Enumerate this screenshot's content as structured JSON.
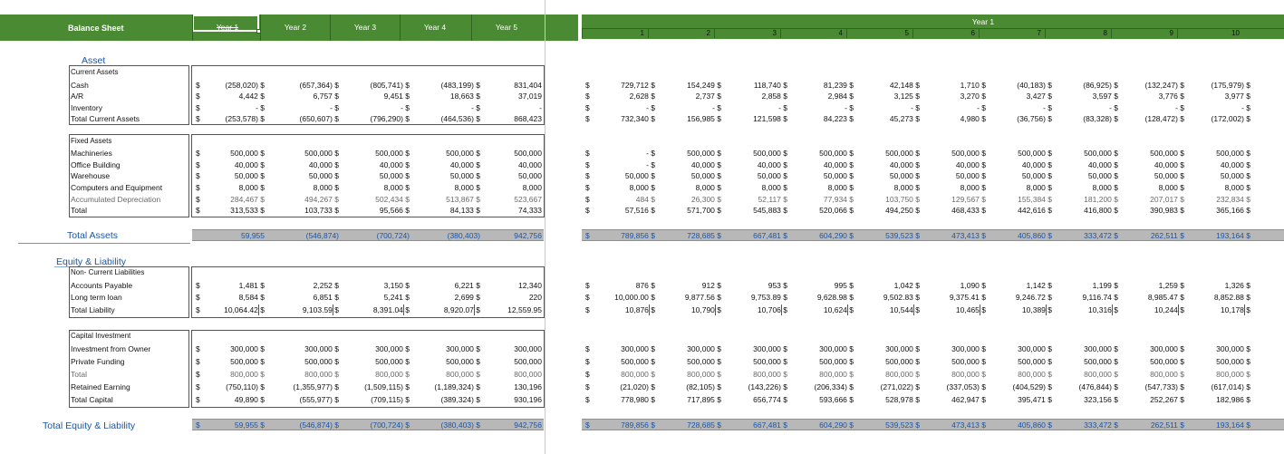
{
  "colors": {
    "header_green": "#4a8a33",
    "total_blue": "#1a56a8",
    "total_bar": "#b8b8b8"
  },
  "header": {
    "title": "Balance Sheet",
    "years": [
      "Year 1",
      "Year 2",
      "Year 3",
      "Year 4",
      "Year 5"
    ],
    "right_title": "Year 1",
    "months": [
      "1",
      "2",
      "3",
      "4",
      "5",
      "6",
      "7",
      "8",
      "9",
      "10"
    ]
  },
  "dollar_sign": "$",
  "sections": {
    "asset": "Asset",
    "current_assets": "Current Assets",
    "fixed_assets": "Fixed Assets",
    "total_assets": "Total Assets",
    "equity_liability": "Equity & Liability",
    "non_current": "Non- Current Liabilities",
    "capital_investment": "Capital Investment",
    "total_equity": "Total Equity & Liability"
  },
  "rows": [
    {
      "label": "Cash",
      "years": [
        "(258,020) $",
        "(657,364) $",
        "(805,741) $",
        "(483,199) $",
        "831,404"
      ],
      "months": [
        "729,712 $",
        "154,249 $",
        "118,740 $",
        "81,239 $",
        "42,148 $",
        "1,710 $",
        "(40,183) $",
        "(86,925) $",
        "(132,247) $",
        "(175,979) $"
      ]
    },
    {
      "label": "A/R",
      "years": [
        "4,442 $",
        "6,757 $",
        "9,451 $",
        "18,663 $",
        "37,019"
      ],
      "months": [
        "2,628 $",
        "2,737 $",
        "2,858 $",
        "2,984 $",
        "3,125 $",
        "3,270 $",
        "3,427 $",
        "3,597 $",
        "3,776 $",
        "3,977 $"
      ]
    },
    {
      "label": "Inventory",
      "years": [
        "- $",
        "- $",
        "- $",
        "- $",
        "-"
      ],
      "months": [
        "- $",
        "- $",
        "- $",
        "- $",
        "- $",
        "- $",
        "- $",
        "- $",
        "- $",
        "- $"
      ]
    },
    {
      "label": "Total Current Assets",
      "years": [
        "(253,578) $",
        "(650,607) $",
        "(796,290) $",
        "(464,536) $",
        "868,423"
      ],
      "months": [
        "732,340 $",
        "156,985 $",
        "121,598 $",
        "84,223 $",
        "45,273 $",
        "4,980 $",
        "(36,756) $",
        "(83,328) $",
        "(128,472) $",
        "(172,002) $"
      ]
    },
    {
      "label": "Machineries",
      "years": [
        "500,000 $",
        "500,000 $",
        "500,000 $",
        "500,000 $",
        "500,000"
      ],
      "months": [
        "- $",
        "500,000 $",
        "500,000 $",
        "500,000 $",
        "500,000 $",
        "500,000 $",
        "500,000 $",
        "500,000 $",
        "500,000 $",
        "500,000 $"
      ]
    },
    {
      "label": "Office Building",
      "years": [
        "40,000 $",
        "40,000 $",
        "40,000 $",
        "40,000 $",
        "40,000"
      ],
      "months": [
        "- $",
        "40,000 $",
        "40,000 $",
        "40,000 $",
        "40,000 $",
        "40,000 $",
        "40,000 $",
        "40,000 $",
        "40,000 $",
        "40,000 $"
      ]
    },
    {
      "label": "Warehouse",
      "years": [
        "50,000 $",
        "50,000 $",
        "50,000 $",
        "50,000 $",
        "50,000"
      ],
      "months": [
        "50,000 $",
        "50,000 $",
        "50,000 $",
        "50,000 $",
        "50,000 $",
        "50,000 $",
        "50,000 $",
        "50,000 $",
        "50,000 $",
        "50,000 $"
      ]
    },
    {
      "label": "Computers and Equipment",
      "years": [
        "8,000 $",
        "8,000 $",
        "8,000 $",
        "8,000 $",
        "8,000"
      ],
      "months": [
        "8,000 $",
        "8,000 $",
        "8,000 $",
        "8,000 $",
        "8,000 $",
        "8,000 $",
        "8,000 $",
        "8,000 $",
        "8,000 $",
        "8,000 $"
      ]
    },
    {
      "label": "Accumulated Depreciation",
      "years": [
        "284,467 $",
        "494,267 $",
        "502,434 $",
        "513,867 $",
        "523,667"
      ],
      "months": [
        "484 $",
        "26,300 $",
        "52,117 $",
        "77,934 $",
        "103,750 $",
        "129,567 $",
        "155,384 $",
        "181,200 $",
        "207,017 $",
        "232,834 $"
      ]
    },
    {
      "label": "Total",
      "years": [
        "313,533 $",
        "103,733 $",
        "95,566 $",
        "84,133 $",
        "74,333"
      ],
      "months": [
        "57,516 $",
        "571,700 $",
        "545,883 $",
        "520,066 $",
        "494,250 $",
        "468,433 $",
        "442,616 $",
        "416,800 $",
        "390,983 $",
        "365,166 $"
      ]
    },
    {
      "label": "Accounts Payable",
      "years": [
        "1,481 $",
        "2,252 $",
        "3,150 $",
        "6,221 $",
        "12,340"
      ],
      "months": [
        "876 $",
        "912 $",
        "953 $",
        "995 $",
        "1,042 $",
        "1,090 $",
        "1,142 $",
        "1,199 $",
        "1,259 $",
        "1,326 $"
      ]
    },
    {
      "label": "Long term loan",
      "years": [
        "8,584 $",
        "6,851 $",
        "5,241 $",
        "2,699 $",
        "220"
      ],
      "months": [
        "10,000.00 $",
        "9,877.56 $",
        "9,753.89 $",
        "9,628.98 $",
        "9,502.83 $",
        "9,375.41 $",
        "9,246.72 $",
        "9,116.74 $",
        "8,985.47 $",
        "8,852.88 $"
      ]
    },
    {
      "label": "Total Liability",
      "years": [
        "10,064.42 $",
        "9,103.59 $",
        "8,391.04 $",
        "8,920.07 $",
        "12,559.95"
      ],
      "months": [
        "10,876 $",
        "10,790 $",
        "10,706 $",
        "10,624 $",
        "10,544 $",
        "10,465 $",
        "10,389 $",
        "10,316 $",
        "10,244 $",
        "10,178 $"
      ]
    },
    {
      "label": "Investment from Owner",
      "years": [
        "300,000 $",
        "300,000 $",
        "300,000 $",
        "300,000 $",
        "300,000"
      ],
      "months": [
        "300,000 $",
        "300,000 $",
        "300,000 $",
        "300,000 $",
        "300,000 $",
        "300,000 $",
        "300,000 $",
        "300,000 $",
        "300,000 $",
        "300,000 $"
      ]
    },
    {
      "label": "Private Funding",
      "years": [
        "500,000 $",
        "500,000 $",
        "500,000 $",
        "500,000 $",
        "500,000"
      ],
      "months": [
        "500,000 $",
        "500,000 $",
        "500,000 $",
        "500,000 $",
        "500,000 $",
        "500,000 $",
        "500,000 $",
        "500,000 $",
        "500,000 $",
        "500,000 $"
      ]
    },
    {
      "label": "Total",
      "years": [
        "800,000 $",
        "800,000 $",
        "800,000 $",
        "800,000 $",
        "800,000"
      ],
      "months": [
        "800,000 $",
        "800,000 $",
        "800,000 $",
        "800,000 $",
        "800,000 $",
        "800,000 $",
        "800,000 $",
        "800,000 $",
        "800,000 $",
        "800,000 $"
      ]
    },
    {
      "label": "Retained Earning",
      "years": [
        "(750,110) $",
        "(1,355,977) $",
        "(1,509,115) $",
        "(1,189,324) $",
        "130,196"
      ],
      "months": [
        "(21,020) $",
        "(82,105) $",
        "(143,226) $",
        "(206,334) $",
        "(271,022) $",
        "(337,053) $",
        "(404,529) $",
        "(476,844) $",
        "(547,733) $",
        "(617,014) $"
      ]
    },
    {
      "label": "Total Capital",
      "years": [
        "49,890 $",
        "(555,977) $",
        "(709,115) $",
        "(389,324) $",
        "930,196"
      ],
      "months": [
        "778,980 $",
        "717,895 $",
        "656,774 $",
        "593,666 $",
        "528,978 $",
        "462,947 $",
        "395,471 $",
        "323,156 $",
        "252,267 $",
        "182,986 $"
      ]
    }
  ],
  "total_assets": {
    "years": [
      "59,955",
      "(546,874)",
      "(700,724)",
      "(380,403)",
      "942,756"
    ],
    "months": [
      "789,856 $",
      "728,685 $",
      "667,481 $",
      "604,290 $",
      "539,523 $",
      "473,413 $",
      "405,860 $",
      "333,472 $",
      "262,511 $",
      "193,164 $"
    ]
  },
  "total_equity": {
    "years": [
      "59,955 $",
      "(546,874) $",
      "(700,724) $",
      "(380,403) $",
      "942,756"
    ],
    "months": [
      "789,856 $",
      "728,685 $",
      "667,481 $",
      "604,290 $",
      "539,523 $",
      "473,413 $",
      "405,860 $",
      "333,472 $",
      "262,511 $",
      "193,164 $"
    ]
  }
}
